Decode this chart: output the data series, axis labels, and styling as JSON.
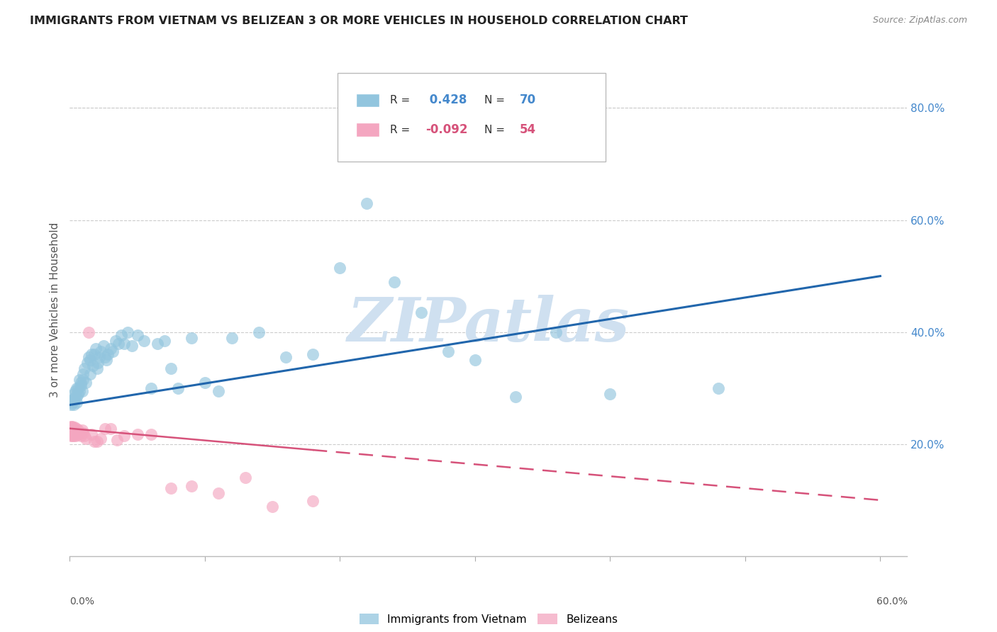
{
  "title": "IMMIGRANTS FROM VIETNAM VS BELIZEAN 3 OR MORE VEHICLES IN HOUSEHOLD CORRELATION CHART",
  "source": "Source: ZipAtlas.com",
  "ylabel": "3 or more Vehicles in Household",
  "right_yticks": [
    "80.0%",
    "60.0%",
    "40.0%",
    "20.0%"
  ],
  "right_ytick_values": [
    0.8,
    0.6,
    0.4,
    0.2
  ],
  "xlim": [
    0.0,
    0.62
  ],
  "ylim": [
    0.0,
    0.88
  ],
  "legend1_label": "Immigrants from Vietnam",
  "legend2_label": "Belizeans",
  "R1": 0.428,
  "N1": 70,
  "R2": -0.092,
  "N2": 54,
  "color_blue": "#92c5de",
  "color_pink": "#f4a6c0",
  "color_blue_line": "#2166ac",
  "color_pink_line": "#d6527a",
  "watermark": "ZIPatlas",
  "watermark_color": "#cfe0f0",
  "vietnam_x": [
    0.001,
    0.002,
    0.002,
    0.003,
    0.003,
    0.003,
    0.004,
    0.004,
    0.005,
    0.005,
    0.005,
    0.006,
    0.006,
    0.007,
    0.007,
    0.008,
    0.008,
    0.009,
    0.01,
    0.01,
    0.011,
    0.012,
    0.013,
    0.014,
    0.015,
    0.015,
    0.016,
    0.017,
    0.018,
    0.019,
    0.02,
    0.021,
    0.022,
    0.023,
    0.025,
    0.026,
    0.027,
    0.028,
    0.03,
    0.032,
    0.034,
    0.036,
    0.038,
    0.04,
    0.043,
    0.046,
    0.05,
    0.055,
    0.06,
    0.065,
    0.07,
    0.075,
    0.08,
    0.09,
    0.1,
    0.11,
    0.12,
    0.14,
    0.16,
    0.18,
    0.2,
    0.22,
    0.24,
    0.26,
    0.28,
    0.3,
    0.33,
    0.36,
    0.4,
    0.48
  ],
  "vietnam_y": [
    0.27,
    0.275,
    0.28,
    0.29,
    0.28,
    0.27,
    0.295,
    0.285,
    0.3,
    0.275,
    0.285,
    0.3,
    0.29,
    0.315,
    0.295,
    0.31,
    0.305,
    0.295,
    0.325,
    0.315,
    0.335,
    0.31,
    0.345,
    0.355,
    0.325,
    0.35,
    0.36,
    0.34,
    0.36,
    0.37,
    0.335,
    0.345,
    0.355,
    0.365,
    0.375,
    0.355,
    0.35,
    0.36,
    0.37,
    0.365,
    0.385,
    0.38,
    0.395,
    0.38,
    0.4,
    0.375,
    0.395,
    0.385,
    0.3,
    0.38,
    0.385,
    0.335,
    0.3,
    0.39,
    0.31,
    0.295,
    0.39,
    0.4,
    0.355,
    0.36,
    0.515,
    0.63,
    0.49,
    0.435,
    0.365,
    0.35,
    0.285,
    0.4,
    0.29,
    0.3
  ],
  "belize_x": [
    0.0002,
    0.0003,
    0.0004,
    0.0005,
    0.0006,
    0.0007,
    0.0008,
    0.001,
    0.001,
    0.0012,
    0.0013,
    0.0015,
    0.0016,
    0.0018,
    0.002,
    0.002,
    0.0022,
    0.0023,
    0.0025,
    0.003,
    0.003,
    0.003,
    0.0032,
    0.0035,
    0.004,
    0.004,
    0.0045,
    0.005,
    0.005,
    0.006,
    0.006,
    0.007,
    0.008,
    0.009,
    0.01,
    0.011,
    0.012,
    0.014,
    0.016,
    0.018,
    0.02,
    0.023,
    0.026,
    0.03,
    0.035,
    0.04,
    0.05,
    0.06,
    0.075,
    0.09,
    0.11,
    0.13,
    0.15,
    0.18
  ],
  "belize_y": [
    0.23,
    0.225,
    0.22,
    0.228,
    0.215,
    0.222,
    0.228,
    0.232,
    0.218,
    0.225,
    0.23,
    0.22,
    0.228,
    0.215,
    0.225,
    0.232,
    0.22,
    0.225,
    0.228,
    0.222,
    0.228,
    0.215,
    0.225,
    0.23,
    0.22,
    0.225,
    0.215,
    0.222,
    0.228,
    0.218,
    0.225,
    0.22,
    0.215,
    0.225,
    0.22,
    0.215,
    0.21,
    0.4,
    0.218,
    0.205,
    0.205,
    0.21,
    0.228,
    0.228,
    0.208,
    0.215,
    0.218,
    0.218,
    0.122,
    0.125,
    0.112,
    0.14,
    0.088,
    0.098
  ],
  "blue_line_x0": 0.0,
  "blue_line_y0": 0.27,
  "blue_line_x1": 0.6,
  "blue_line_y1": 0.5,
  "pink_line_x0": 0.0,
  "pink_line_y0": 0.228,
  "pink_line_x1": 0.6,
  "pink_line_y1": 0.1
}
